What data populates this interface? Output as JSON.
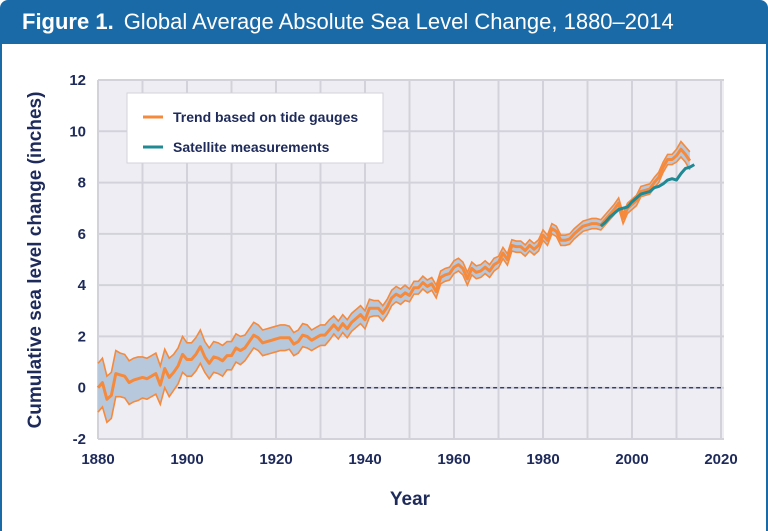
{
  "figure_label": "Figure 1.",
  "title": "Global Average Absolute Sea Level Change, 1880–2014",
  "chart_data": {
    "type": "line",
    "title": "Global Average Absolute Sea Level Change, 1880–2014",
    "xlabel": "Year",
    "ylabel": "Cumulative sea level change (inches)",
    "xlim": [
      1880,
      2020
    ],
    "ylim": [
      -2,
      12
    ],
    "xticks": [
      "1880",
      "1900",
      "1920",
      "1940",
      "1960",
      "1980",
      "2000",
      "2020"
    ],
    "yticks": [
      "-2",
      "0",
      "2",
      "4",
      "6",
      "8",
      "10",
      "12"
    ],
    "grid": true,
    "legend_position": "top-left",
    "reference_line": {
      "y": 0,
      "from_year": 1898,
      "style": "dashed"
    },
    "colors": {
      "trend": "#f58a3c",
      "satellite": "#1f8a94",
      "band": "#b7c8dc",
      "plot_bg": "#efedf4",
      "grid": "#d3d2da",
      "title_bar": "#1b6aa8",
      "text": "#1d2a5a"
    },
    "series": [
      {
        "name": "Trend based on tide gauges",
        "start_year": 1880,
        "values": [
          0,
          0.2,
          -0.45,
          -0.3,
          0.55,
          0.5,
          0.45,
          0.2,
          0.3,
          0.35,
          0.4,
          0.35,
          0.45,
          0.55,
          0.1,
          0.75,
          0.4,
          0.6,
          0.85,
          1.3,
          1.1,
          1.1,
          1.3,
          1.6,
          1.2,
          0.95,
          1.2,
          1.15,
          1.05,
          1.25,
          1.25,
          1.55,
          1.45,
          1.55,
          1.8,
          2.05,
          1.95,
          1.75,
          1.8,
          1.85,
          1.9,
          1.95,
          1.95,
          1.95,
          1.7,
          1.8,
          2.05,
          2.0,
          1.85,
          1.95,
          2.05,
          2.05,
          2.25,
          2.45,
          2.25,
          2.5,
          2.3,
          2.55,
          2.7,
          2.85,
          2.65,
          3.1,
          3.1,
          3.1,
          2.9,
          3.15,
          3.5,
          3.65,
          3.55,
          3.7,
          3.6,
          3.9,
          3.9,
          4.1,
          3.95,
          4.05,
          3.75,
          4.3,
          4.4,
          4.45,
          4.7,
          4.8,
          4.65,
          4.25,
          4.65,
          4.5,
          4.55,
          4.7,
          4.55,
          4.8,
          4.9,
          5.25,
          5.0,
          5.55,
          5.5,
          5.5,
          5.35,
          5.55,
          5.4,
          5.55,
          5.95,
          5.75,
          6.2,
          6.1,
          5.75,
          5.75,
          5.8,
          6.0,
          6.15,
          6.3,
          6.35,
          6.4,
          6.4,
          6.35,
          6.55,
          6.75,
          6.95,
          7.2,
          6.6,
          7.0,
          7.15,
          7.3,
          7.65,
          7.7,
          7.75,
          8.0,
          8.2,
          8.6,
          8.9,
          8.9,
          9.05,
          9.3,
          9.1,
          8.85
        ],
        "uncertainty": [
          0.95,
          0.95,
          0.9,
          0.9,
          0.9,
          0.85,
          0.85,
          0.85,
          0.85,
          0.85,
          0.8,
          0.8,
          0.8,
          0.8,
          0.75,
          0.75,
          0.75,
          0.7,
          0.7,
          0.7,
          0.65,
          0.65,
          0.65,
          0.65,
          0.6,
          0.6,
          0.6,
          0.6,
          0.6,
          0.55,
          0.55,
          0.55,
          0.55,
          0.5,
          0.5,
          0.5,
          0.5,
          0.5,
          0.5,
          0.5,
          0.5,
          0.5,
          0.5,
          0.45,
          0.45,
          0.45,
          0.45,
          0.45,
          0.4,
          0.4,
          0.4,
          0.4,
          0.4,
          0.35,
          0.35,
          0.35,
          0.35,
          0.35,
          0.35,
          0.35,
          0.35,
          0.35,
          0.3,
          0.3,
          0.3,
          0.3,
          0.3,
          0.3,
          0.3,
          0.3,
          0.25,
          0.25,
          0.25,
          0.25,
          0.25,
          0.25,
          0.25,
          0.25,
          0.25,
          0.25,
          0.25,
          0.25,
          0.25,
          0.25,
          0.25,
          0.25,
          0.25,
          0.25,
          0.25,
          0.25,
          0.22,
          0.22,
          0.22,
          0.22,
          0.22,
          0.22,
          0.22,
          0.22,
          0.22,
          0.22,
          0.2,
          0.2,
          0.2,
          0.2,
          0.2,
          0.2,
          0.2,
          0.2,
          0.2,
          0.2,
          0.2,
          0.2,
          0.2,
          0.2,
          0.2,
          0.2,
          0.2,
          0.2,
          0.2,
          0.2,
          0.2,
          0.2,
          0.2,
          0.2,
          0.2,
          0.2,
          0.2,
          0.2,
          0.2,
          0.2,
          0.25,
          0.3,
          0.3,
          0.35
        ]
      },
      {
        "name": "Satellite measurements",
        "start_year": 1993,
        "values": [
          6.3,
          6.45,
          6.65,
          6.8,
          6.95,
          7.0,
          7.05,
          7.25,
          7.4,
          7.55,
          7.6,
          7.65,
          7.8,
          7.85,
          7.95,
          8.1,
          8.15,
          8.1,
          8.35,
          8.55,
          8.6,
          8.7
        ]
      }
    ]
  }
}
